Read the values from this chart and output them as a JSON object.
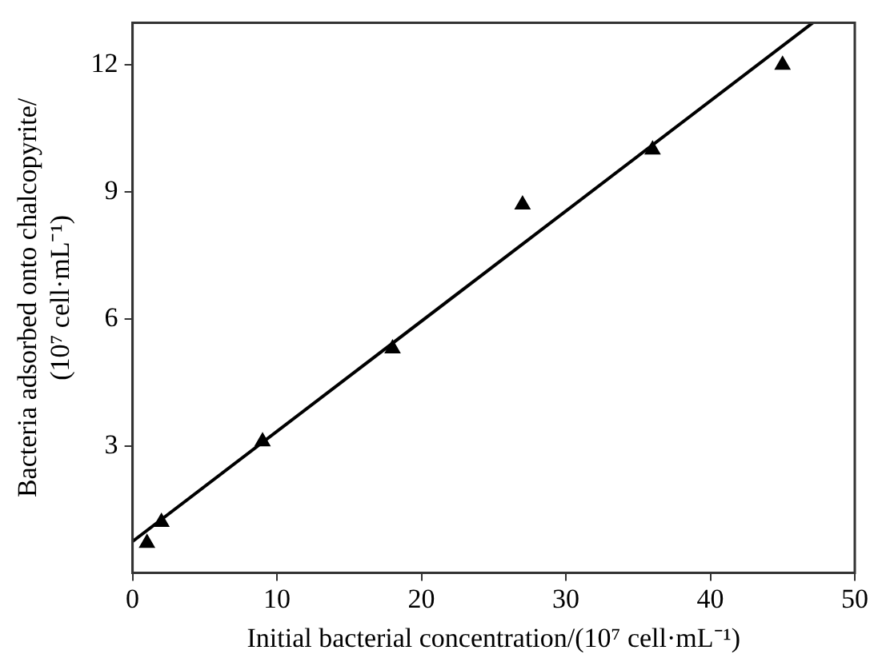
{
  "chart_data": {
    "type": "scatter",
    "xlabel": "Initial bacterial concentration/(10⁷ cell·mL⁻¹)",
    "ylabel": "Bacteria adsorbed onto chalcopyrite/(10⁷ cell·mL⁻¹)",
    "xlim": [
      0,
      50
    ],
    "xticks": [
      0,
      10,
      20,
      30,
      40,
      50
    ],
    "ylim": [
      0,
      13
    ],
    "yticks": [
      3,
      6,
      9,
      12
    ],
    "grid": false,
    "series": [
      {
        "marker": "triangle",
        "color": "#000000",
        "x": [
          1,
          2,
          9,
          18,
          27,
          36,
          45
        ],
        "values": [
          0.7,
          1.2,
          3.1,
          5.3,
          8.7,
          10.0,
          12.0
        ]
      },
      {
        "type": "line",
        "marker": "none",
        "color": "#000000",
        "x": [
          0,
          47.1
        ],
        "values": [
          0.74,
          13
        ]
      }
    ]
  }
}
